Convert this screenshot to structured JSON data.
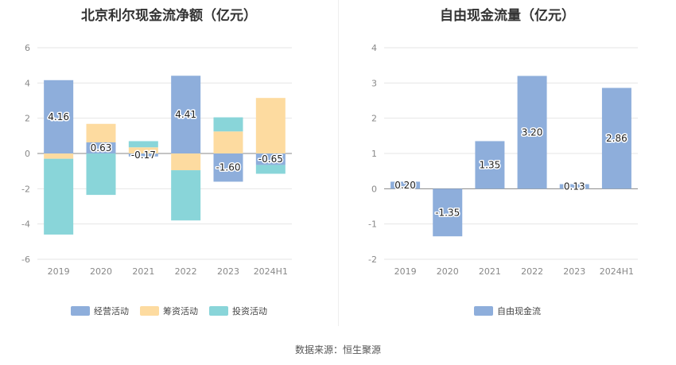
{
  "chart_data": [
    {
      "type": "bar",
      "stacked": true,
      "title": "北京利尔现金流净额（亿元）",
      "categories": [
        "2019",
        "2020",
        "2021",
        "2022",
        "2023",
        "2024H1"
      ],
      "series": [
        {
          "name": "经营活动",
          "color": "#8eaedb",
          "values": [
            4.16,
            0.63,
            -0.17,
            4.41,
            -1.6,
            -0.65
          ]
        },
        {
          "name": "筹资活动",
          "color": "#fddba0",
          "values": [
            -0.3,
            1.05,
            0.35,
            -0.95,
            1.25,
            3.15
          ]
        },
        {
          "name": "投资活动",
          "color": "#89d5d9",
          "values": [
            -4.3,
            -2.35,
            0.35,
            -2.85,
            0.8,
            -0.5
          ]
        }
      ],
      "data_labels": [
        "4.16",
        "0.63",
        "-0.17",
        "4.41",
        "-1.60",
        "-0.65"
      ],
      "yticks": [
        "6",
        "4",
        "2",
        "0",
        "-2",
        "-4",
        "-6"
      ],
      "ylim": [
        -6,
        6
      ],
      "legend": "bottom",
      "grid": true
    },
    {
      "type": "bar",
      "title": "自由现金流量（亿元）",
      "categories": [
        "2019",
        "2020",
        "2021",
        "2022",
        "2023",
        "2024H1"
      ],
      "series": [
        {
          "name": "自由现金流",
          "color": "#8eaedb",
          "values": [
            0.2,
            -1.35,
            1.35,
            3.2,
            0.13,
            2.86
          ]
        }
      ],
      "data_labels": [
        "0.20",
        "-1.35",
        "1.35",
        "3.20",
        "0.13",
        "2.86"
      ],
      "yticks": [
        "4",
        "3",
        "2",
        "1",
        "0",
        "-1",
        "-2"
      ],
      "ylim": [
        -2,
        4
      ],
      "legend": "bottom",
      "grid": true
    }
  ],
  "footer": {
    "source": "数据来源：恒生聚源"
  }
}
